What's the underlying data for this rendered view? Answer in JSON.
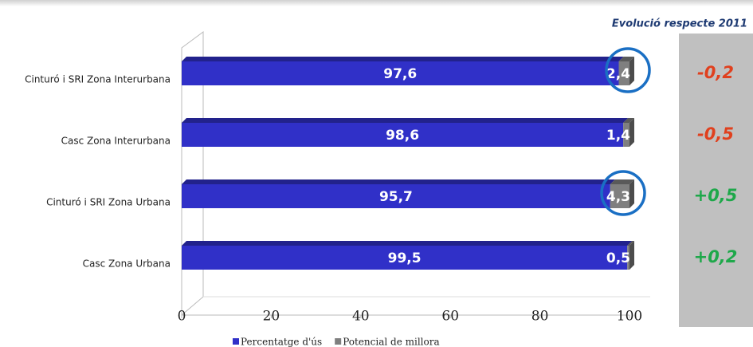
{
  "chart_data": {
    "type": "stacked_bar_horizontal",
    "categories": [
      "Cinturó i SRI Zona Interurbana",
      "Casc Zona Interurbana",
      "Cinturó i SRI Zona Urbana",
      "Casc Zona Urbana"
    ],
    "series": [
      {
        "name": "Percentatge d'ús",
        "color": "#3030c8",
        "values": [
          97.6,
          98.6,
          95.7,
          99.5
        ],
        "value_labels": [
          "97,6",
          "98,6",
          "95,7",
          "99,5"
        ]
      },
      {
        "name": "Potencial de millora",
        "color": "#7f7f7f",
        "values": [
          2.4,
          1.4,
          4.3,
          0.5
        ],
        "value_labels": [
          "2,4",
          "1,4",
          "4,3",
          "0,5"
        ]
      }
    ],
    "xlim": [
      0,
      100
    ],
    "xticks": [
      0,
      20,
      40,
      60,
      80,
      100
    ],
    "annotations": {
      "title": "Evolució respecte 2011",
      "values": [
        -0.2,
        -0.5,
        0.5,
        0.2
      ],
      "value_labels": [
        "-0,2",
        "-0,5",
        "+0,5",
        "+0,2"
      ]
    }
  }
}
